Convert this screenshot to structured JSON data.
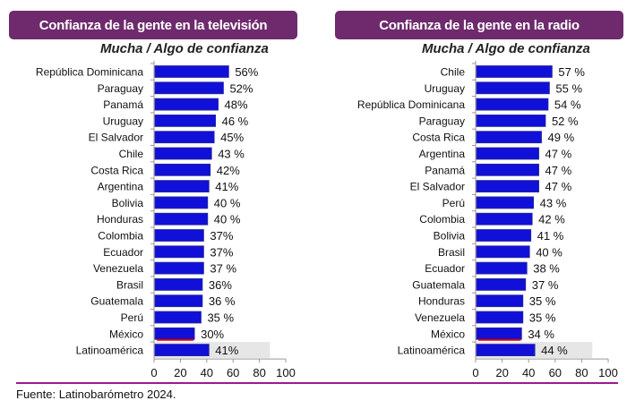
{
  "chart_data": [
    {
      "type": "bar",
      "orientation": "horizontal",
      "title": "Confianza de la gente en la televisión",
      "subtitle": "Mucha / Algo de confianza",
      "xlim": [
        0,
        100
      ],
      "xticks": [
        0,
        20,
        40,
        60,
        80,
        100
      ],
      "bar_color": "#1010d8",
      "highlight_color": "#e00000",
      "categories": [
        "República Dominicana",
        "Paraguay",
        "Panamá",
        "Uruguay",
        "El Salvador",
        "Chile",
        "Costa Rica",
        "Argentina",
        "Bolivia",
        "Honduras",
        "Colombia",
        "Ecuador",
        "Venezuela",
        "Brasil",
        "Guatemala",
        "Perú",
        "México",
        "Latinoamérica"
      ],
      "values": [
        56,
        52,
        48,
        46,
        45,
        43,
        42,
        41,
        40,
        40,
        37,
        37,
        37,
        36,
        36,
        35,
        30,
        41
      ],
      "labels": [
        "56%",
        "52%",
        "48%",
        "46 %",
        "45%",
        "43 %",
        "42%",
        "41%",
        "40 %",
        "40 %",
        "37%",
        "37%",
        "37 %",
        "36%",
        "36 %",
        "35 %",
        "30%",
        "41%"
      ]
    },
    {
      "type": "bar",
      "orientation": "horizontal",
      "title": "Confianza de la gente en la radio",
      "subtitle": "Mucha / Algo de confianza",
      "xlim": [
        0,
        100
      ],
      "xticks": [
        0,
        20,
        40,
        60,
        80,
        100
      ],
      "bar_color": "#1010d8",
      "highlight_color": "#e00000",
      "categories": [
        "Chile",
        "Uruguay",
        "República Dominicana",
        "Paraguay",
        "Costa Rica",
        "Argentina",
        "Panamá",
        "El Salvador",
        "Perú",
        "Colombia",
        "Bolivia",
        "Brasil",
        "Ecuador",
        "Guatemala",
        "Honduras",
        "Venezuela",
        "México",
        "Latinoamérica"
      ],
      "values": [
        57,
        55,
        54,
        52,
        49,
        47,
        47,
        47,
        43,
        42,
        41,
        40,
        38,
        37,
        35,
        35,
        34,
        44
      ],
      "labels": [
        "57 %",
        "55 %",
        "54 %",
        "52 %",
        "49 %",
        "47 %",
        "47 %",
        "47 %",
        "43 %",
        "42 %",
        "41 %",
        "40 %",
        "38 %",
        "37 %",
        "35 %",
        "35 %",
        "34 %",
        "44  %"
      ]
    }
  ],
  "footer": "Fuente: Latinobarómetro 2024."
}
